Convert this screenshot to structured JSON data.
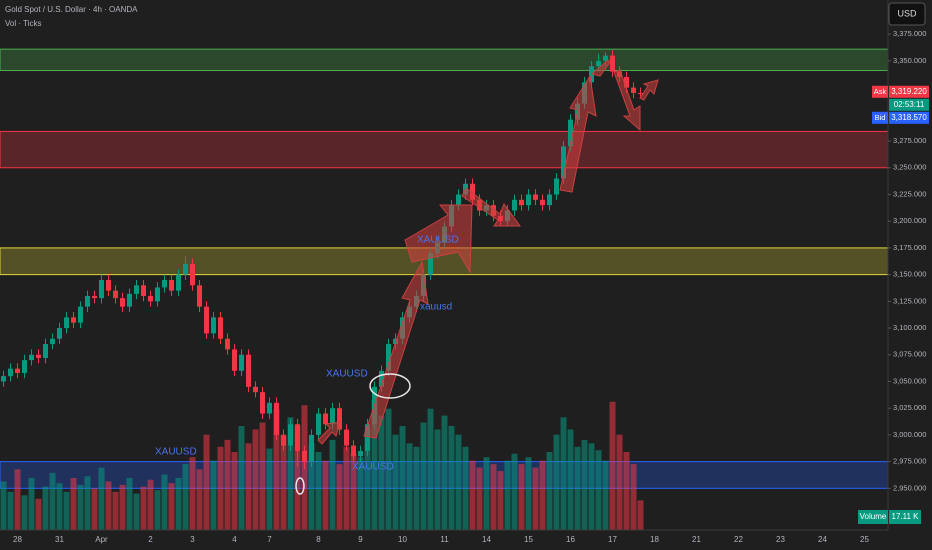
{
  "chart_data": {
    "type": "candlestick",
    "title": "Gold Spot / U.S. Dollar · 4h · OANDA",
    "subtitle": "Vol · Ticks",
    "currency": "USD",
    "ylim": [
      2911,
      3407
    ],
    "yticks": [
      {
        "value": 2950,
        "label": "2,950.000"
      },
      {
        "value": 2975,
        "label": "2,975.000"
      },
      {
        "value": 3000,
        "label": "3,000.000"
      },
      {
        "value": 3025,
        "label": "3,025.000"
      },
      {
        "value": 3050,
        "label": "3,050.000"
      },
      {
        "value": 3075,
        "label": "3,075.000"
      },
      {
        "value": 3100,
        "label": "3,100.000"
      },
      {
        "value": 3125,
        "label": "3,125.000"
      },
      {
        "value": 3150,
        "label": "3,150.000"
      },
      {
        "value": 3175,
        "label": "3,175.000"
      },
      {
        "value": 3200,
        "label": "3,200.000"
      },
      {
        "value": 3225,
        "label": "3,225.000"
      },
      {
        "value": 3250,
        "label": "3,250.000"
      },
      {
        "value": 3275,
        "label": "3,275.000"
      },
      {
        "value": 3350,
        "label": "3,350.000"
      },
      {
        "value": 3375,
        "label": "3,375.000"
      }
    ],
    "categories": [
      null,
      null,
      "28",
      null,
      null,
      null,
      null,
      null,
      "31",
      null,
      null,
      null,
      null,
      null,
      "Apr",
      null,
      null,
      null,
      null,
      null,
      null,
      "2",
      null,
      null,
      null,
      null,
      null,
      "3",
      null,
      null,
      null,
      null,
      null,
      "4",
      null,
      null,
      null,
      null,
      "7",
      null,
      null,
      null,
      null,
      null,
      null,
      "8",
      null,
      null,
      null,
      null,
      null,
      "9",
      null,
      null,
      null,
      null,
      null,
      "10",
      null,
      null,
      null,
      null,
      null,
      "11",
      null,
      null,
      null,
      null,
      null,
      "14",
      null,
      null,
      null,
      null,
      null,
      "15",
      null,
      null,
      null,
      null,
      null,
      "16",
      null,
      null,
      null,
      null,
      null,
      "17",
      null,
      null,
      null,
      null,
      null,
      "18",
      null,
      null,
      null,
      null,
      null,
      "21",
      null,
      null,
      null,
      null,
      null,
      "22",
      null,
      null,
      null,
      null,
      null,
      "23",
      null,
      null,
      null,
      null,
      null,
      "24",
      null,
      null,
      null,
      null,
      null,
      "25",
      null,
      null
    ],
    "open": [
      3050,
      3055,
      3062,
      3058,
      3070,
      3075,
      3072,
      3085,
      3090,
      3100,
      3110,
      3105,
      3120,
      3130,
      3128,
      3145,
      3135,
      3128,
      3120,
      3132,
      3140,
      3130,
      3125,
      3138,
      3145,
      3135,
      3150,
      3160,
      3140,
      3120,
      3095,
      3110,
      3090,
      3080,
      3060,
      3075,
      3045,
      3040,
      3020,
      3030,
      3000,
      2990,
      3010,
      2985,
      2975,
      3000,
      3020,
      3010,
      3025,
      3005,
      2990,
      2980,
      2985,
      3010,
      3045,
      3060,
      3085,
      3090,
      3110,
      3120,
      3130,
      3150,
      3170,
      3180,
      3195,
      3215,
      3225,
      3235,
      3220,
      3210,
      3215,
      3205,
      3200,
      3210,
      3220,
      3215,
      3225,
      3220,
      3215,
      3225,
      3240,
      3270,
      3295,
      3310,
      3330,
      3345,
      3350,
      3355,
      3340,
      3335,
      3325,
      3320,
      null,
      null,
      null,
      null,
      null,
      null,
      null,
      null,
      null,
      null,
      null,
      null,
      null,
      null,
      null,
      null,
      null,
      null,
      null,
      null,
      null,
      null,
      null,
      null,
      null,
      null,
      null,
      null,
      null,
      null,
      null,
      null,
      null,
      null
    ],
    "high": [
      3060,
      3067,
      3067,
      3075,
      3080,
      3080,
      3090,
      3095,
      3105,
      3115,
      3115,
      3125,
      3135,
      3135,
      3150,
      3150,
      3140,
      3133,
      3137,
      3145,
      3145,
      3135,
      3143,
      3150,
      3150,
      3155,
      3167,
      3165,
      3145,
      3125,
      3115,
      3115,
      3095,
      3085,
      3080,
      3080,
      3050,
      3045,
      3035,
      3035,
      3005,
      3015,
      3015,
      2990,
      3005,
      3025,
      3025,
      3030,
      3030,
      3010,
      2995,
      2990,
      3015,
      3050,
      3065,
      3090,
      3095,
      3115,
      3125,
      3135,
      3155,
      3175,
      3185,
      3200,
      3220,
      3230,
      3240,
      3240,
      3225,
      3220,
      3220,
      3210,
      3215,
      3225,
      3225,
      3230,
      3230,
      3225,
      3230,
      3245,
      3275,
      3300,
      3315,
      3335,
      3350,
      3357,
      3358,
      3360,
      3345,
      3340,
      3330,
      3325,
      null,
      null,
      null,
      null,
      null,
      null,
      null,
      null,
      null,
      null,
      null,
      null,
      null,
      null,
      null,
      null,
      null,
      null,
      null,
      null,
      null,
      null,
      null,
      null,
      null,
      null,
      null,
      null,
      null,
      null,
      null,
      null,
      null,
      null
    ],
    "low": [
      3045,
      3050,
      3053,
      3053,
      3065,
      3067,
      3067,
      3080,
      3085,
      3095,
      3100,
      3100,
      3115,
      3123,
      3123,
      3130,
      3123,
      3115,
      3115,
      3127,
      3125,
      3120,
      3120,
      3133,
      3130,
      3130,
      3145,
      3135,
      3115,
      3090,
      3090,
      3085,
      3075,
      3055,
      3055,
      3040,
      3035,
      3015,
      3015,
      2995,
      2985,
      2985,
      2970,
      2968,
      2970,
      2995,
      3005,
      3005,
      3000,
      2985,
      2975,
      2975,
      2980,
      3005,
      3040,
      3055,
      3080,
      3085,
      3105,
      3115,
      3125,
      3145,
      3165,
      3175,
      3190,
      3210,
      3220,
      3215,
      3205,
      3205,
      3200,
      3195,
      3195,
      3205,
      3210,
      3210,
      3215,
      3210,
      3210,
      3220,
      3235,
      3265,
      3290,
      3305,
      3325,
      3340,
      3345,
      3335,
      3330,
      3320,
      3315,
      3315,
      null,
      null,
      null,
      null,
      null,
      null,
      null,
      null,
      null,
      null,
      null,
      null,
      null,
      null,
      null,
      null,
      null,
      null,
      null,
      null,
      null,
      null,
      null,
      null,
      null,
      null,
      null,
      null,
      null,
      null,
      null,
      null,
      null,
      null
    ],
    "close": [
      3055,
      3062,
      3058,
      3070,
      3075,
      3072,
      3085,
      3090,
      3100,
      3110,
      3105,
      3120,
      3130,
      3128,
      3145,
      3135,
      3128,
      3120,
      3132,
      3140,
      3130,
      3125,
      3138,
      3145,
      3135,
      3150,
      3160,
      3140,
      3120,
      3095,
      3110,
      3090,
      3080,
      3060,
      3075,
      3045,
      3040,
      3020,
      3030,
      3000,
      2990,
      3010,
      2985,
      2975,
      3000,
      3020,
      3010,
      3025,
      3005,
      2990,
      2980,
      2985,
      3010,
      3045,
      3060,
      3085,
      3090,
      3110,
      3120,
      3130,
      3150,
      3170,
      3180,
      3195,
      3215,
      3225,
      3235,
      3220,
      3210,
      3215,
      3205,
      3200,
      3210,
      3220,
      3215,
      3225,
      3220,
      3215,
      3225,
      3240,
      3270,
      3295,
      3310,
      3330,
      3345,
      3350,
      3355,
      3340,
      3335,
      3325,
      3320,
      3319,
      null,
      null,
      null,
      null,
      null,
      null,
      null,
      null,
      null,
      null,
      null,
      null,
      null,
      null,
      null,
      null,
      null,
      null,
      null,
      null,
      null,
      null,
      null,
      null,
      null,
      null,
      null,
      null,
      null,
      null,
      null,
      null,
      null,
      null
    ],
    "volume": [
      28,
      22,
      35,
      20,
      30,
      18,
      25,
      33,
      27,
      22,
      30,
      26,
      31,
      24,
      36,
      28,
      22,
      26,
      30,
      21,
      25,
      29,
      23,
      32,
      27,
      30,
      38,
      42,
      35,
      55,
      40,
      48,
      52,
      45,
      60,
      50,
      58,
      62,
      47,
      70,
      55,
      65,
      60,
      72,
      50,
      45,
      40,
      52,
      38,
      48,
      44,
      42,
      58,
      75,
      66,
      70,
      55,
      60,
      50,
      48,
      62,
      70,
      58,
      66,
      60,
      55,
      48,
      40,
      36,
      42,
      38,
      34,
      40,
      44,
      38,
      42,
      36,
      40,
      45,
      55,
      65,
      58,
      48,
      52,
      50,
      46,
      40,
      74,
      55,
      45,
      38,
      17.11,
      null,
      null,
      null,
      null,
      null,
      null,
      null,
      null,
      null,
      null,
      null,
      null,
      null,
      null,
      null,
      null,
      null,
      null,
      null,
      null,
      null,
      null,
      null,
      null,
      null,
      null,
      null,
      null,
      null,
      null,
      null,
      null,
      null,
      null
    ],
    "up_color": "#089981",
    "down_color": "#f23645",
    "volume_label": "Volume",
    "volume_value_label": "17.11 K",
    "zones": [
      {
        "low": 3341,
        "high": 3361,
        "color": "#4caf50"
      },
      {
        "low": 3250,
        "high": 3284,
        "color": "#f23645"
      },
      {
        "low": 3150,
        "high": 3175,
        "color": "#e0d43a"
      },
      {
        "low": 2950,
        "high": 2975,
        "color": "#2962ff"
      }
    ],
    "ask": {
      "name": "Ask",
      "value": 3319.22,
      "label": "3,319.220",
      "color": "#f23645"
    },
    "countdown": "02:53:11",
    "bid": {
      "name": "Bid",
      "value": 3318.57,
      "label": "3,318.570",
      "color": "#2962ff"
    },
    "annotations": [
      "XAUUSD",
      "XAUUSD",
      "XAUUSD",
      "XAUUSD",
      "xauusd"
    ]
  }
}
